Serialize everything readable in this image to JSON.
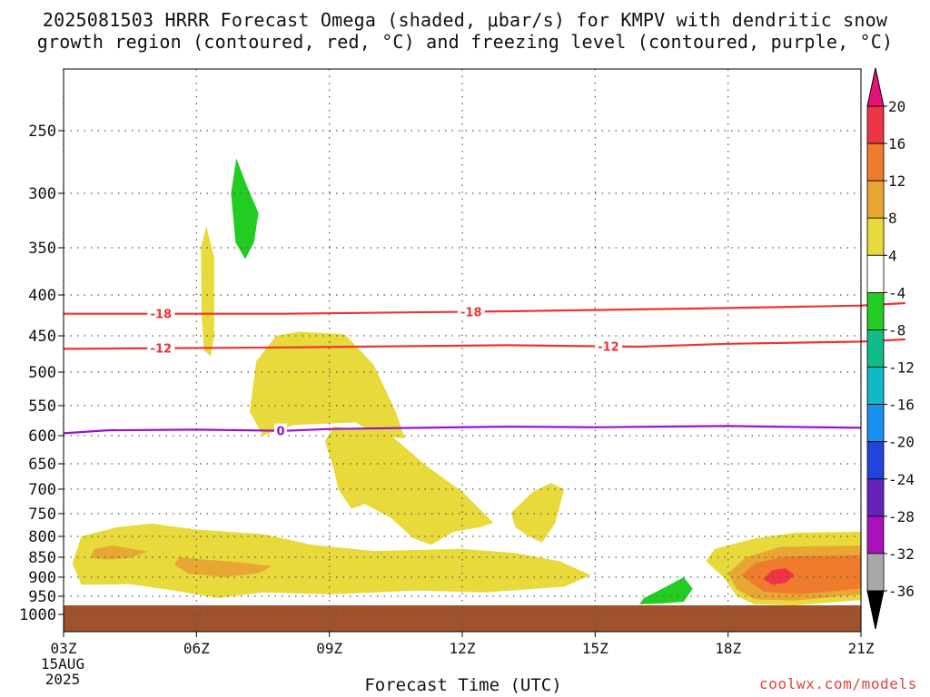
{
  "title_line1": "2025081503 HRRR Forecast Omega (shaded, μbar/s) for KMPV with dendritic snow",
  "title_line2": "growth region (contoured, red, °C) and freezing level (contoured, purple, °C)",
  "attribution": "coolwx.com/models",
  "chart_data": {
    "type": "time-height cross-section",
    "xlabel": "Forecast Time (UTC)",
    "x_ticks": [
      "03Z",
      "06Z",
      "09Z",
      "12Z",
      "15Z",
      "18Z",
      "21Z"
    ],
    "x_start_date": [
      "15AUG",
      "2025"
    ],
    "y_unit": "hPa (pressure, decreasing upward)",
    "y_ticks": [
      250,
      300,
      350,
      400,
      450,
      500,
      550,
      600,
      650,
      700,
      750,
      800,
      850,
      900,
      950,
      1000
    ],
    "grid": true,
    "colorbar": {
      "position": "right",
      "labels": [
        20,
        16,
        12,
        8,
        4,
        -4,
        -8,
        -12,
        -16,
        -20,
        -24,
        -28,
        -32,
        -36
      ],
      "bins": [
        {
          "range": "16 to 20",
          "color": "#ee3344"
        },
        {
          "range": "12 to 16",
          "color": "#ee7c2c"
        },
        {
          "range": "8 to 12",
          "color": "#e8a733"
        },
        {
          "range": "4 to 8",
          "color": "#e7da3a"
        },
        {
          "range": "-4 to 4",
          "color": "#ffffff"
        },
        {
          "range": "-8 to -4",
          "color": "#22cc22"
        },
        {
          "range": "-12 to -8",
          "color": "#11bb88"
        },
        {
          "range": "-16 to -12",
          "color": "#11b8c8"
        },
        {
          "range": "-20 to -16",
          "color": "#1a90ee"
        },
        {
          "range": "-24 to -20",
          "color": "#2244dd"
        },
        {
          "range": "-28 to -24",
          "color": "#6622bb"
        },
        {
          "range": "-32 to -28",
          "color": "#aa11bb"
        },
        {
          "range": "-36 to -32",
          "color": "#a8a8a8"
        }
      ],
      "over_color": "#e8117a",
      "under_color": "#000000"
    },
    "contours": [
      {
        "label": "-18",
        "color": "#ee3333",
        "pressure_by_time": [
          [
            0,
            423
          ],
          [
            5,
            423
          ],
          [
            10,
            420
          ],
          [
            15,
            416
          ],
          [
            18,
            413
          ],
          [
            19,
            410
          ]
        ]
      },
      {
        "label": "-12",
        "color": "#ee3333",
        "pressure_by_time": [
          [
            0,
            468
          ],
          [
            5,
            466
          ],
          [
            10,
            463
          ],
          [
            13,
            465
          ],
          [
            15,
            461
          ],
          [
            18,
            458
          ],
          [
            19,
            455
          ]
        ]
      },
      {
        "label": "0",
        "color": "#9911cc",
        "pressure_by_time": [
          [
            0,
            596
          ],
          [
            1,
            591
          ],
          [
            3,
            590
          ],
          [
            5,
            592
          ],
          [
            6,
            589
          ],
          [
            10,
            585
          ],
          [
            12,
            586
          ],
          [
            15,
            584
          ],
          [
            16,
            585
          ],
          [
            18,
            587
          ]
        ]
      }
    ],
    "shaded_regions": [
      {
        "level": "4 to 8",
        "time": [
          6.2,
          6.4
        ],
        "pressure": [
          330,
          480
        ]
      },
      {
        "level": "-8 to -4",
        "time": [
          6.6,
          7.4
        ],
        "pressure": [
          270,
          365
        ]
      },
      {
        "level": "4 to 8",
        "time": [
          7.1,
          10.6
        ],
        "pressure": [
          440,
          610
        ]
      },
      {
        "level": "4 to 8",
        "time": [
          8.7,
          13.4
        ],
        "pressure": [
          575,
          830
        ]
      },
      {
        "level": "4 to 8",
        "time": [
          12.2,
          14.0
        ],
        "pressure": [
          660,
          800
        ]
      },
      {
        "level": "4 to 8",
        "time": [
          3.3,
          15.0
        ],
        "pressure": [
          765,
          950
        ]
      },
      {
        "level": "8 to 12",
        "time": [
          3.9,
          4.9
        ],
        "pressure": [
          820,
          855
        ]
      },
      {
        "level": "8 to 12",
        "time": [
          5.5,
          7.9
        ],
        "pressure": [
          850,
          900
        ]
      },
      {
        "level": "-8 to -4",
        "time": [
          16.0,
          17.2
        ],
        "pressure": [
          900,
          970
        ]
      },
      {
        "level": "4 to 8",
        "time": [
          17.5,
          21.0
        ],
        "pressure": [
          790,
          975
        ]
      },
      {
        "level": "8 to 12",
        "time": [
          18.0,
          21.0
        ],
        "pressure": [
          820,
          960
        ]
      },
      {
        "level": "12 to 16",
        "time": [
          18.3,
          21.0
        ],
        "pressure": [
          845,
          940
        ]
      },
      {
        "level": "16 to 20",
        "time": [
          18.8,
          19.4
        ],
        "pressure": [
          880,
          920
        ]
      }
    ],
    "surface_below_pressure": 975,
    "surface_color": "#a0522d"
  }
}
